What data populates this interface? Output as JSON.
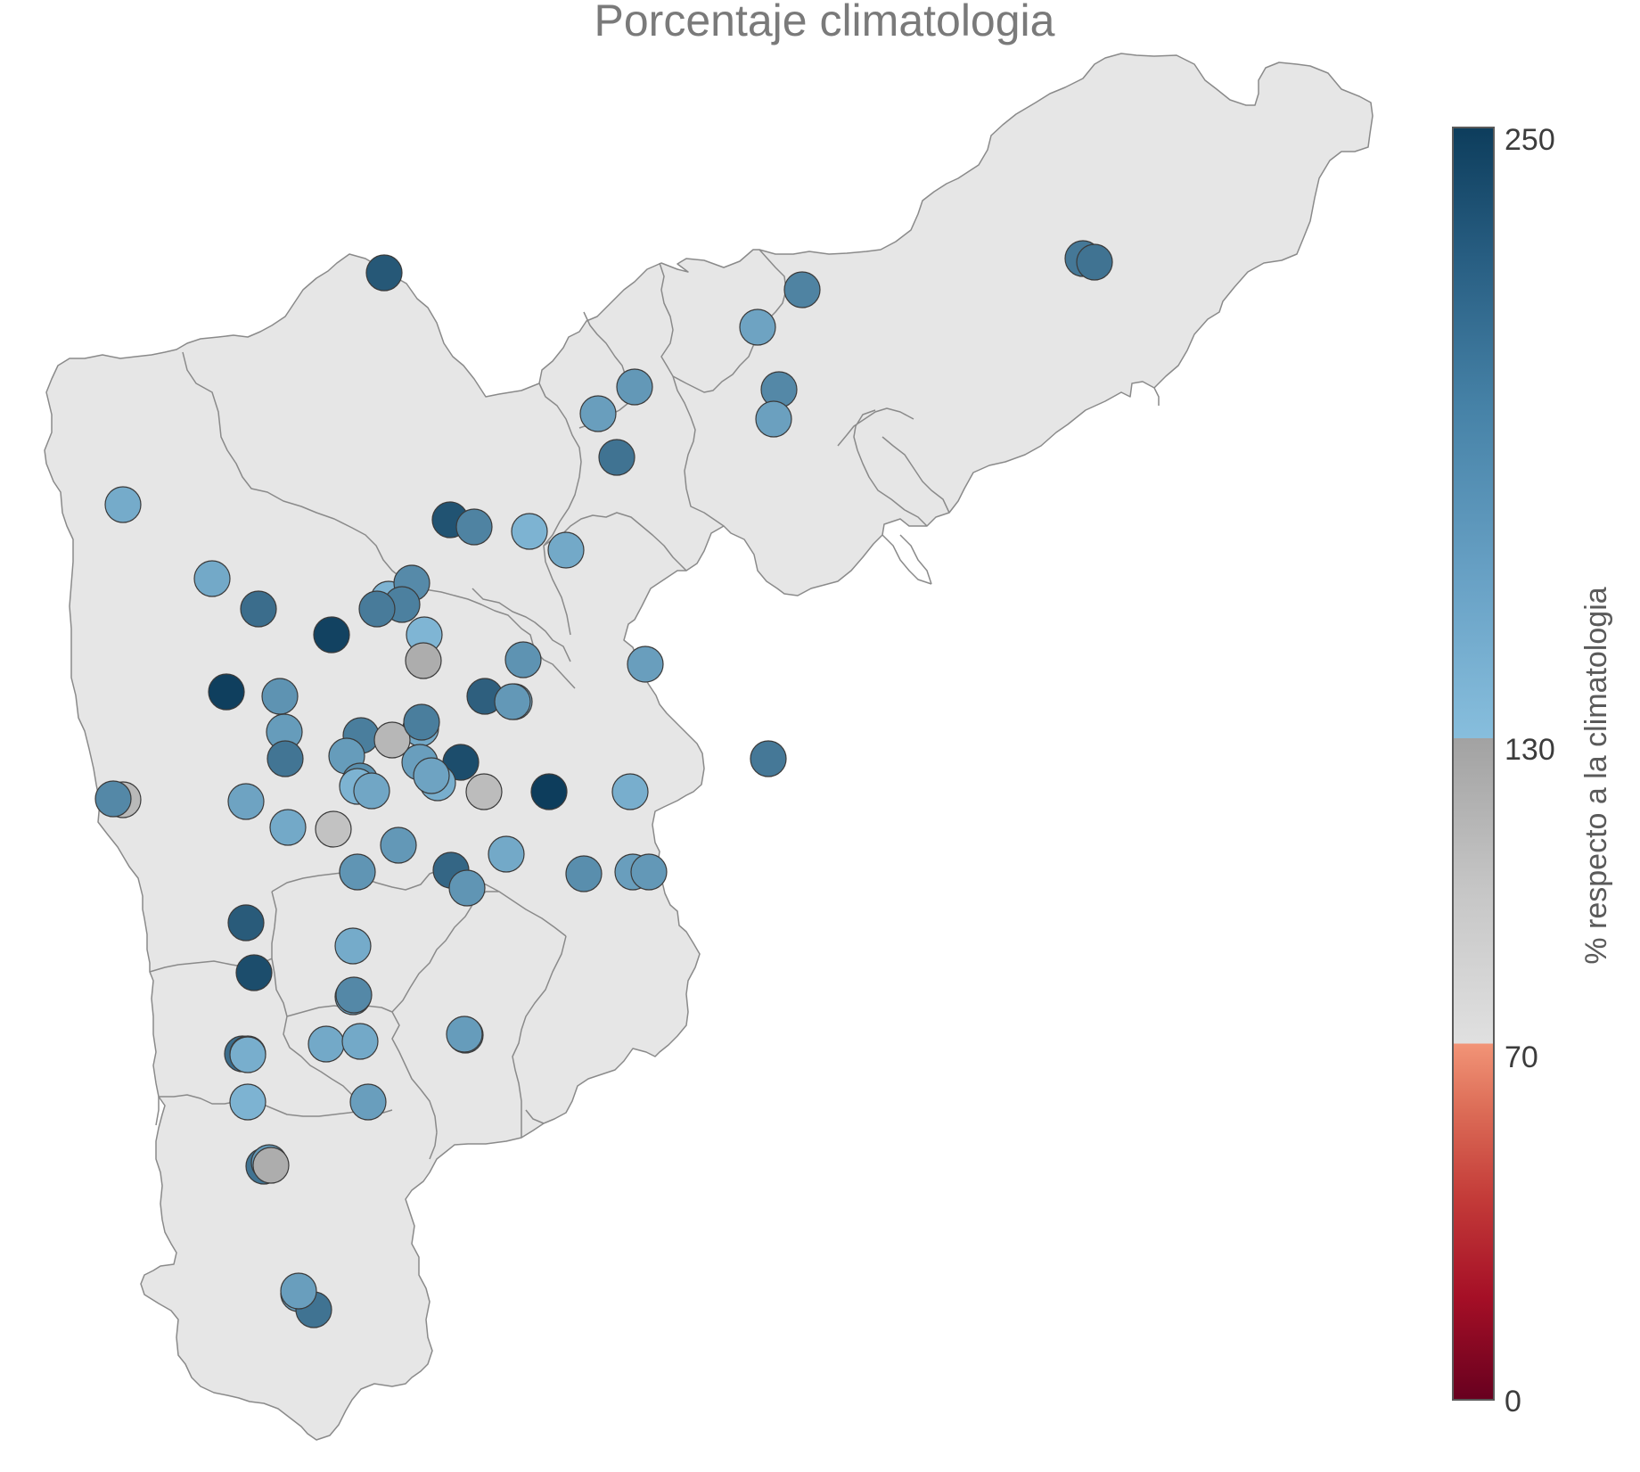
{
  "map": {
    "title": "Porcentaje climatologia"
  },
  "legend": {
    "title": "% respecto a la climatologia",
    "ticks": [
      "250",
      "130",
      "70",
      "0"
    ],
    "tick_values": [
      250,
      130,
      70,
      0
    ],
    "min": 0,
    "max": 250,
    "colors": {
      "band_0_70": [
        "#67001f",
        "#b2182b",
        "#d6604d",
        "#f4a582"
      ],
      "band_70_130": [
        "#e0e0e0",
        "#c4c4c4",
        "#a3a3a3"
      ],
      "band_130_250": [
        "#87bedd",
        "#6aa3c5",
        "#4b86aa",
        "#2f6688",
        "#0d3d5c"
      ]
    }
  },
  "chart_data": {
    "type": "scatter",
    "value_label": "% respecto a la climatologia",
    "color_scale": [
      {
        "range": [
          0,
          70
        ],
        "colors": [
          "#67001f",
          "#f4a582"
        ]
      },
      {
        "range": [
          70,
          130
        ],
        "colors": [
          "#e0e0e0",
          "#a3a3a3"
        ]
      },
      {
        "range": [
          130,
          250
        ],
        "colors": [
          "#87bedd",
          "#0d3d5c"
        ]
      }
    ],
    "stations": [
      {
        "v": 225
      },
      {
        "v": 195
      },
      {
        "v": 200
      },
      {
        "v": 185
      },
      {
        "v": 155
      },
      {
        "v": 148
      },
      {
        "v": 150
      },
      {
        "v": 205
      },
      {
        "v": 245
      },
      {
        "v": 140
      },
      {
        "v": 180
      },
      {
        "v": 158
      },
      {
        "v": 165
      },
      {
        "v": 160
      },
      {
        "v": 200
      },
      {
        "v": 230
      },
      {
        "v": 185
      },
      {
        "v": 140
      },
      {
        "v": 150
      },
      {
        "v": 178
      },
      {
        "v": 188
      },
      {
        "v": 192
      },
      {
        "v": 138
      },
      {
        "v": 120
      },
      {
        "v": 170
      },
      {
        "v": 160
      },
      {
        "v": 248
      },
      {
        "v": 170
      },
      {
        "v": 162
      },
      {
        "v": 198
      },
      {
        "v": 190
      },
      {
        "v": 150
      },
      {
        "v": 160
      },
      {
        "v": 162
      },
      {
        "v": 235
      },
      {
        "v": 218
      },
      {
        "v": 142
      },
      {
        "v": 110
      },
      {
        "v": 190
      },
      {
        "v": 165
      },
      {
        "v": 145
      },
      {
        "v": 175
      },
      {
        "v": 108
      },
      {
        "v": 155
      },
      {
        "v": 250
      },
      {
        "v": 140
      },
      {
        "v": 180
      },
      {
        "v": 152
      },
      {
        "v": 155
      },
      {
        "v": 100
      },
      {
        "v": 165
      },
      {
        "v": 150
      },
      {
        "v": 105
      },
      {
        "v": 212
      },
      {
        "v": 168
      },
      {
        "v": 150
      },
      {
        "v": 168
      },
      {
        "v": 195
      },
      {
        "v": 145
      },
      {
        "v": 235
      },
      {
        "v": 175
      },
      {
        "v": 160
      },
      {
        "v": 165
      },
      {
        "v": 165
      },
      {
        "v": 222
      },
      {
        "v": 148
      },
      {
        "v": 205
      },
      {
        "v": 150
      },
      {
        "v": 150
      },
      {
        "v": 155
      },
      {
        "v": 162
      },
      {
        "v": 140
      },
      {
        "v": 160
      },
      {
        "v": 200
      },
      {
        "v": 165
      },
      {
        "v": 205
      },
      {
        "v": 180
      },
      {
        "v": 158
      },
      {
        "v": 200
      },
      {
        "v": 120
      },
      {
        "v": 145
      },
      {
        "v": 160
      }
    ]
  }
}
